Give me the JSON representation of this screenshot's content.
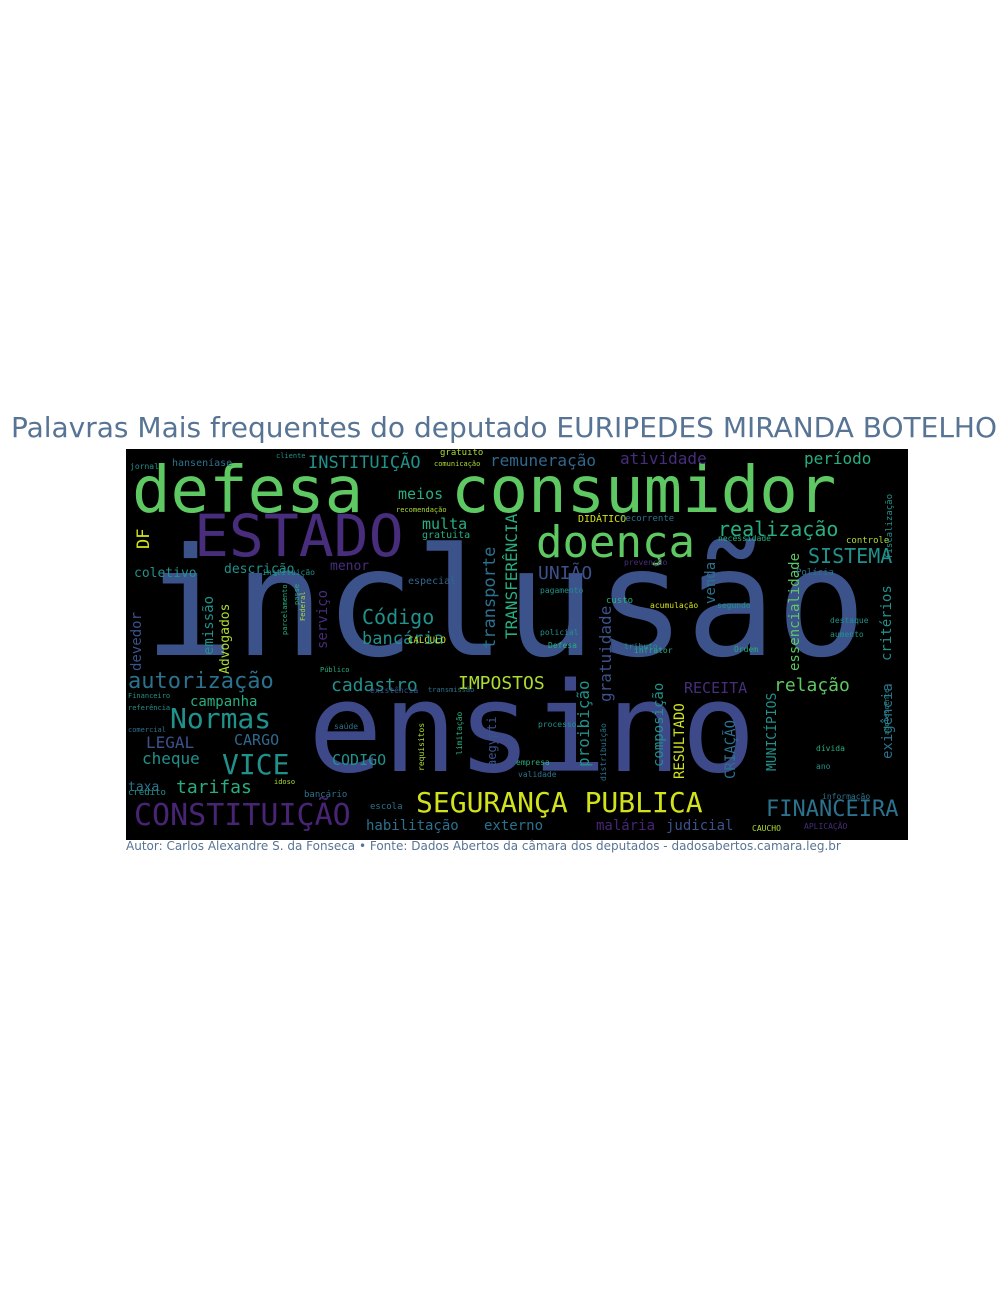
{
  "title": "Palavras Mais frequentes do deputado EURIPEDES MIRANDA BOTELHO",
  "caption": "Autor: Carlos Alexandre S. da Fonseca • Fonte: Dados Abertos da câmara dos deputados - dadosabertos.camara.leg.br",
  "cloud_background": "#000000",
  "palette": {
    "purple": "#472d7b",
    "indigo": "#3b528b",
    "blue": "#2c728e",
    "teal": "#21918c",
    "green": "#28ae80",
    "lightgreen": "#5ec962",
    "lime": "#addc30",
    "yellow": "#d2e21b"
  },
  "words": [
    {
      "text": "inclusão",
      "color": "#3b528b"
    },
    {
      "text": "ensino",
      "color": "#3e4989"
    },
    {
      "text": "defesa",
      "color": "#5ec962"
    },
    {
      "text": "consumidor",
      "color": "#5ec962"
    },
    {
      "text": "ESTADO",
      "color": "#472d7b"
    },
    {
      "text": "doença",
      "color": "#5ec962"
    },
    {
      "text": "SEGURANÇA PUBLICA",
      "color": "#d2e21b"
    },
    {
      "text": "CONSTITUIÇÃO",
      "color": "#482475"
    },
    {
      "text": "Normas",
      "color": "#21918c"
    },
    {
      "text": "VICE",
      "color": "#21918c"
    },
    {
      "text": "autorização",
      "color": "#2c728e"
    },
    {
      "text": "cadastro",
      "color": "#21918c"
    },
    {
      "text": "IMPOSTOS",
      "color": "#addc30"
    },
    {
      "text": "FINANCEIRA",
      "color": "#2c728e"
    },
    {
      "text": "realização",
      "color": "#28ae80"
    },
    {
      "text": "SISTEMA",
      "color": "#21918c"
    },
    {
      "text": "INSTITUIÇÃO",
      "color": "#21918c"
    },
    {
      "text": "remuneração",
      "color": "#31688e"
    },
    {
      "text": "atividade",
      "color": "#472d7b"
    },
    {
      "text": "período",
      "color": "#28ae80"
    },
    {
      "text": "Código",
      "color": "#21918c"
    },
    {
      "text": "bancária",
      "color": "#21918c"
    },
    {
      "text": "UNIÃO",
      "color": "#3b528b"
    },
    {
      "text": "multa",
      "color": "#28ae80"
    },
    {
      "text": "meios",
      "color": "#28ae80"
    },
    {
      "text": "relação",
      "color": "#5ec962"
    },
    {
      "text": "RECEITA",
      "color": "#472d7b"
    },
    {
      "text": "tarifas",
      "color": "#28ae80"
    },
    {
      "text": "cheque",
      "color": "#21918c"
    },
    {
      "text": "LEGAL",
      "color": "#3b528b"
    },
    {
      "text": "CARGO",
      "color": "#31688e"
    },
    {
      "text": "CODIGO",
      "color": "#21918c"
    },
    {
      "text": "campanha",
      "color": "#28ae80"
    },
    {
      "text": "coletivo",
      "color": "#21918c"
    },
    {
      "text": "descrição",
      "color": "#21918c"
    },
    {
      "text": "menor",
      "color": "#472d7b"
    },
    {
      "text": "taxa",
      "color": "#2c728e"
    },
    {
      "text": "habilitação",
      "color": "#2c728e"
    },
    {
      "text": "externo",
      "color": "#2c728e"
    },
    {
      "text": "malária",
      "color": "#482475"
    },
    {
      "text": "judicial",
      "color": "#3b528b"
    },
    {
      "text": "transporte",
      "color": "#2c728e"
    },
    {
      "text": "TRANSFERÊNCIA",
      "color": "#28ae80"
    },
    {
      "text": "gratuidade",
      "color": "#3b528b"
    },
    {
      "text": "essencialidade",
      "color": "#5ec962"
    },
    {
      "text": "critérios",
      "color": "#21918c"
    },
    {
      "text": "exigência",
      "color": "#2c728e"
    },
    {
      "text": "proibição",
      "color": "#21918c"
    },
    {
      "text": "composição",
      "color": "#21918c"
    },
    {
      "text": "RESULTADO",
      "color": "#d2e21b"
    },
    {
      "text": "CRIAÇÃO",
      "color": "#2c728e"
    },
    {
      "text": "MUNICÍPIOS",
      "color": "#21918c"
    },
    {
      "text": "serviço",
      "color": "#472d7b"
    },
    {
      "text": "emissão",
      "color": "#21918c"
    },
    {
      "text": "devedor",
      "color": "#3b528b"
    },
    {
      "text": "Advogados",
      "color": "#addc30"
    },
    {
      "text": "DF",
      "color": "#d2e21b"
    },
    {
      "text": "venda",
      "color": "#2c728e"
    },
    {
      "text": "aegypti",
      "color": "#3b528b"
    },
    {
      "text": "especial",
      "color": "#31688e"
    },
    {
      "text": "gratuita",
      "color": "#28ae80"
    },
    {
      "text": "custo",
      "color": "#28ae80"
    },
    {
      "text": "controle",
      "color": "#addc30"
    },
    {
      "text": "escola",
      "color": "#2c728e"
    },
    {
      "text": "bancário",
      "color": "#2c728e"
    },
    {
      "text": "crédito",
      "color": "#21918c"
    },
    {
      "text": "fiscalização",
      "color": "#21918c"
    },
    {
      "text": "DIDÁTICO",
      "color": "#d2e21b"
    },
    {
      "text": "recorrente",
      "color": "#2c728e"
    },
    {
      "text": "gratuito",
      "color": "#addc30"
    },
    {
      "text": "hanseníase",
      "color": "#2c728e"
    },
    {
      "text": "Polícia",
      "color": "#2c728e"
    },
    {
      "text": "segundo",
      "color": "#21918c"
    },
    {
      "text": "Ordem",
      "color": "#28ae80"
    },
    {
      "text": "infrator",
      "color": "#28ae80"
    },
    {
      "text": "policial",
      "color": "#21918c"
    },
    {
      "text": "pagamento",
      "color": "#21918c"
    },
    {
      "text": "Defesa",
      "color": "#28ae80"
    },
    {
      "text": "jornal",
      "color": "#21918c"
    },
    {
      "text": "instituição",
      "color": "#21918c"
    },
    {
      "text": "recomendação",
      "color": "#addc30"
    },
    {
      "text": "comunicação",
      "color": "#addc30"
    },
    {
      "text": "prevenção",
      "color": "#472d7b"
    },
    {
      "text": "acumulação",
      "color": "#d2e21b"
    },
    {
      "text": "necessidade",
      "color": "#28ae80"
    },
    {
      "text": "destaque",
      "color": "#21918c"
    },
    {
      "text": "aumento",
      "color": "#21918c"
    },
    {
      "text": "informação",
      "color": "#2c728e"
    },
    {
      "text": "APLICAÇÃO",
      "color": "#472d7b"
    },
    {
      "text": "CAUCHO",
      "color": "#addc30"
    },
    {
      "text": "Financeiro",
      "color": "#21918c"
    },
    {
      "text": "referência",
      "color": "#21918c"
    },
    {
      "text": "comercial",
      "color": "#2c728e"
    },
    {
      "text": "Público",
      "color": "#28ae80"
    },
    {
      "text": "existência",
      "color": "#3b528b"
    },
    {
      "text": "transmissão",
      "color": "#2c728e"
    },
    {
      "text": "distribuição",
      "color": "#2c728e"
    },
    {
      "text": "requisitos",
      "color": "#addc30"
    },
    {
      "text": "limitação",
      "color": "#28ae80"
    },
    {
      "text": "processo",
      "color": "#21918c"
    },
    {
      "text": "empresa",
      "color": "#28ae80"
    },
    {
      "text": "validade",
      "color": "#2c728e"
    },
    {
      "text": "parcelamento",
      "color": "#28ae80"
    },
    {
      "text": "adolescente",
      "color": "#21918c"
    },
    {
      "text": "CALCULO",
      "color": "#d2e21b"
    },
    {
      "text": "Federal",
      "color": "#addc30"
    },
    {
      "text": "tributo",
      "color": "#21918c"
    },
    {
      "text": "idoso",
      "color": "#addc30"
    },
    {
      "text": "cliente",
      "color": "#21918c"
    },
    {
      "text": "dívida",
      "color": "#28ae80"
    },
    {
      "text": "ano",
      "color": "#21918c"
    },
    {
      "text": "saúde",
      "color": "#2c728e"
    },
    {
      "text": "passe",
      "color": "#28ae80"
    },
    {
      "text": "inscrição",
      "color": "#21918c"
    }
  ]
}
